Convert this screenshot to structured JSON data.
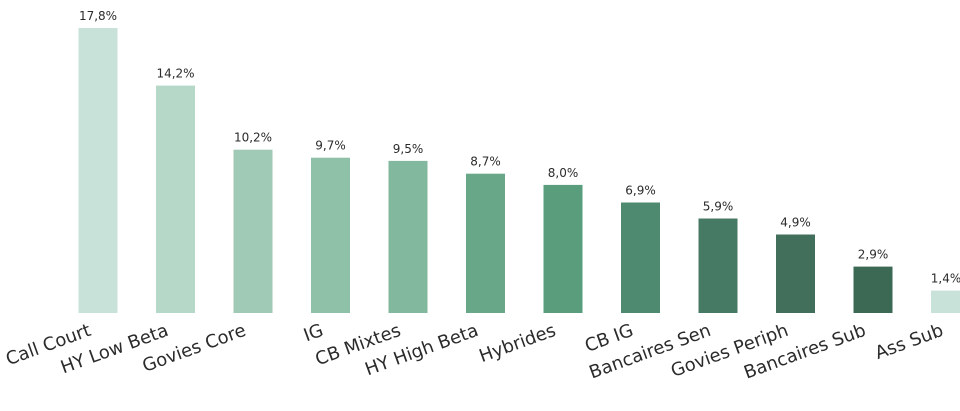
{
  "chart_data": {
    "type": "bar",
    "title": "",
    "xlabel": "",
    "ylabel": "",
    "categories": [
      "Call Court",
      "HY Low Beta",
      "Govies Core",
      "IG",
      "CB Mixtes",
      "HY High Beta",
      "Hybrides",
      "CB IG",
      "Bancaires Sen",
      "Govies Periph",
      "Bancaires Sub",
      "Ass Sub"
    ],
    "values": [
      17.8,
      14.2,
      10.2,
      9.7,
      9.5,
      8.7,
      8.0,
      6.9,
      5.9,
      4.9,
      2.9,
      1.4
    ],
    "value_labels": [
      "17,8%",
      "14,2%",
      "10,2%",
      "9,7%",
      "9,5%",
      "8,7%",
      "8,0%",
      "6,9%",
      "5,9%",
      "4,9%",
      "2,9%",
      "1,4%"
    ],
    "colors": [
      "#c8e2da",
      "#b5d8c9",
      "#a0cab5",
      "#8fc0a8",
      "#82b89d",
      "#68a889",
      "#5a9d7d",
      "#4d8a6f",
      "#477a65",
      "#416f5c",
      "#3b6954",
      "#c8e2da"
    ],
    "ylim": [
      0,
      17.8
    ],
    "grid": false,
    "legend": "none"
  }
}
